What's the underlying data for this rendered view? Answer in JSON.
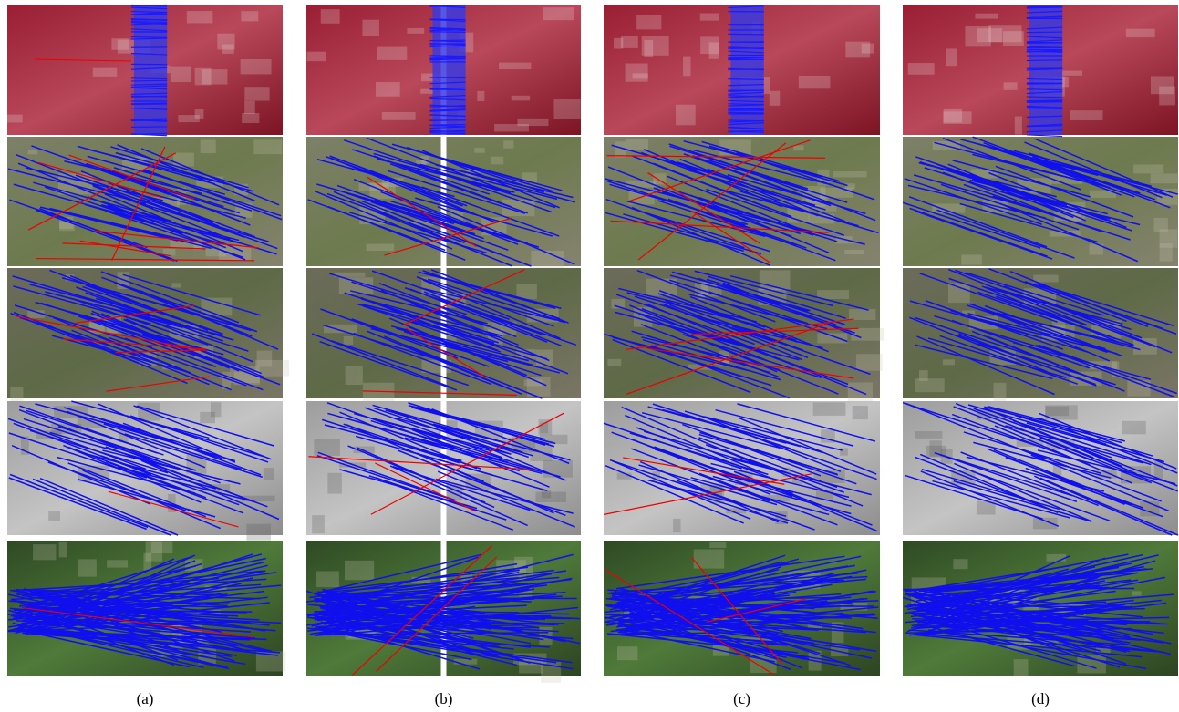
{
  "columns": [
    {
      "label": "(a)"
    },
    {
      "label": "(b)"
    },
    {
      "label": "(c)"
    },
    {
      "label": "(d)"
    }
  ]
}
